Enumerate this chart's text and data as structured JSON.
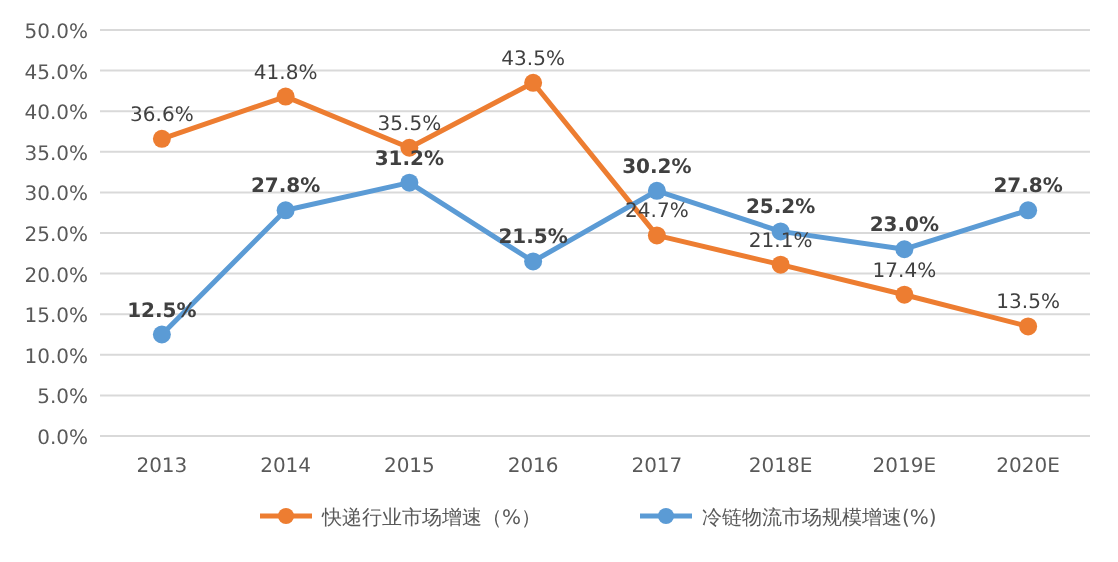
{
  "chart_data": {
    "type": "line",
    "categories": [
      "2013",
      "2014",
      "2015",
      "2016",
      "2017",
      "2018E",
      "2019E",
      "2020E"
    ],
    "series": [
      {
        "name": "快递行业市场增速（%）",
        "color": "#ed7d31",
        "values": [
          36.6,
          41.8,
          35.5,
          43.5,
          24.7,
          21.1,
          17.4,
          13.5
        ],
        "value_labels": [
          "36.6%",
          "41.8%",
          "35.5%",
          "43.5%",
          "24.7%",
          "21.1%",
          "17.4%",
          "13.5%"
        ]
      },
      {
        "name": "冷链物流市场规模增速(%)",
        "color": "#5b9bd5",
        "values": [
          12.5,
          27.8,
          31.2,
          21.5,
          30.2,
          25.2,
          23.0,
          27.8
        ],
        "value_labels": [
          "12.5%",
          "27.8%",
          "31.2%",
          "21.5%",
          "30.2%",
          "25.2%",
          "23.0%",
          "27.8%"
        ]
      }
    ],
    "ylim": [
      0,
      50
    ],
    "yticks": [
      {
        "value": 0,
        "label": "0.0%"
      },
      {
        "value": 5,
        "label": "5.0%"
      },
      {
        "value": 10,
        "label": "10.0%"
      },
      {
        "value": 15,
        "label": "15.0%"
      },
      {
        "value": 20,
        "label": "20.0%"
      },
      {
        "value": 25,
        "label": "25.0%"
      },
      {
        "value": 30,
        "label": "30.0%"
      },
      {
        "value": 35,
        "label": "35.0%"
      },
      {
        "value": 40,
        "label": "40.0%"
      },
      {
        "value": 45,
        "label": "45.0%"
      },
      {
        "value": 50,
        "label": "50.0%"
      }
    ],
    "grid": "y",
    "legend": "bottom",
    "marker": "circle",
    "line_style": "solid"
  }
}
